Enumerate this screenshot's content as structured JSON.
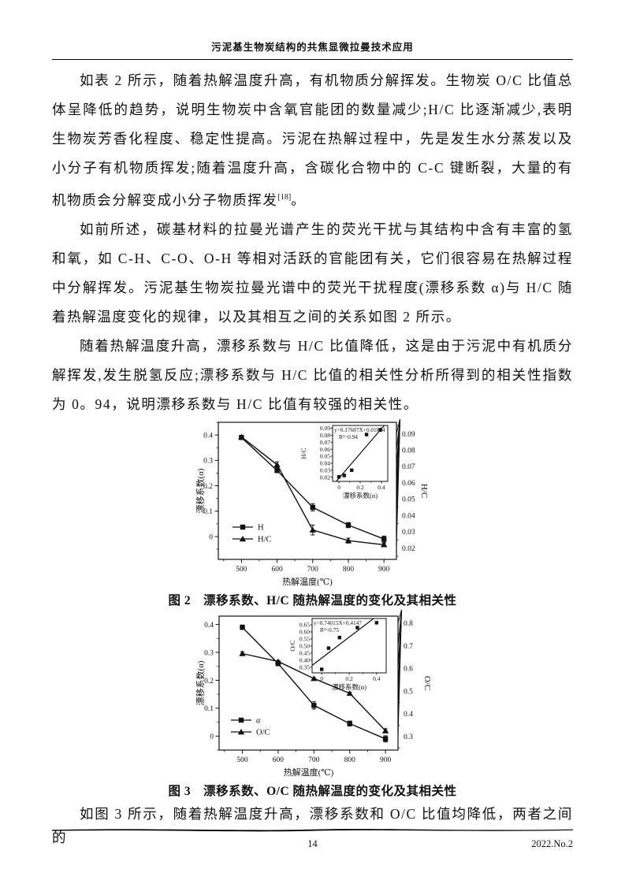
{
  "header": {
    "title": "污泥基生物炭结构的共焦显微拉曼技术应用"
  },
  "body": {
    "p1_text": "如表 2 所示，随着热解温度升高，有机物质分解挥发。生物炭 O/C 比值总体呈降低的趋势，说明生物炭中含氧官能团的数量减少;H/C 比逐渐减少,表明生物炭芳香化程度、稳定性提高。污泥在热解过程中，先是发生水分蒸发以及小分子有机物质挥发;随着温度升高，含碳化合物中的 C-C 键断裂，大量的有机物质会分解变成小分子物质挥发",
    "p1_sup": "[18]",
    "p1_tail": "。",
    "p2": "如前所述，碳基材料的拉曼光谱产生的荧光干扰与其结构中含有丰富的氢和氧，如 C-H、C-O、O-H 等相对活跃的官能团有关，它们很容易在热解过程中分解挥发。污泥基生物炭拉曼光谱中的荧光干扰程度(漂移系数 α)与 H/C 随着热解温度变化的规律，以及其相互之间的关系如图 2 所示。",
    "p3": "随着热解温度升高，漂移系数与 H/C 比值降低，这是由于污泥中有机质分解挥发,发生脱氢反应;漂移系数与 H/C 比值的相关性分析所得到的相关性指数为 0。94，说明漂移系数与 H/C 比值有较强的相关性。",
    "p4": "如图 3 所示，随着热解温度升高，漂移系数和 O/C 比值均降低，两者之间的"
  },
  "figures": {
    "fig2": {
      "caption": "图 2　漂移系数、H/C 随热解温度的变化及其相关性",
      "chart_data": {
        "type": "line",
        "x": [
          500,
          600,
          700,
          800,
          900
        ],
        "x_tick_labels": [
          "500",
          "600",
          "700",
          "800",
          "900"
        ],
        "xlim": [
          435,
          935
        ],
        "xlabel": "热解温度(℃)",
        "left_axis": {
          "label": "漂移系数(α)",
          "lim": [
            -0.09,
            0.45
          ],
          "ticks": [
            0,
            0.1,
            0.2,
            0.3,
            0.4
          ],
          "tick_labels": [
            "0",
            "0.1",
            "0.2",
            "0.3",
            "0.4"
          ]
        },
        "right_axis": {
          "label": "H/C",
          "lim": [
            0.013,
            0.097
          ],
          "ticks": [
            0.02,
            0.03,
            0.04,
            0.05,
            0.06,
            0.07,
            0.08,
            0.09
          ],
          "tick_labels": [
            "0.02",
            "0.03",
            "0.04",
            "0.05",
            "0.06",
            "0.07",
            "0.08",
            "0.09"
          ]
        },
        "series": [
          {
            "name": "H",
            "marker": "square",
            "axis": "left",
            "italic": false,
            "values": [
              0.39,
              0.26,
              0.115,
              0.045,
              -0.01
            ],
            "errors": [
              0.008,
              0.008,
              0.014,
              0.01,
              0.012
            ]
          },
          {
            "name": "H/C",
            "marker": "triangle",
            "axis": "right",
            "italic": false,
            "values": [
              0.088,
              0.071,
              0.031,
              0.0245,
              0.022
            ],
            "errors": [
              0.001,
              0.0018,
              0.003,
              0.0015,
              0.001
            ]
          }
        ],
        "legend_position": "lower-left",
        "inset": {
          "equation": "y=0.17687X+0.01854",
          "r_squared": "R²=0.94",
          "xlabel": "漂移系数(α)",
          "ylabel": "H/C",
          "xlim": [
            -0.06,
            0.46
          ],
          "x_ticks": [
            0,
            0.2,
            0.4
          ],
          "x_tick_labels": [
            "0",
            "0.2",
            "0.4"
          ],
          "ylim": [
            0.014,
            0.094
          ],
          "y_ticks": [
            0.02,
            0.03,
            0.04,
            0.05,
            0.06,
            0.07,
            0.08,
            0.09
          ],
          "y_tick_labels": [
            "0.02",
            "0.03",
            "0.04",
            "0.05",
            "0.06",
            "0.07",
            "0.08",
            "0.09"
          ],
          "points": [
            [
              0,
              0.0205
            ],
            [
              0.05,
              0.0225
            ],
            [
              0.12,
              0.03
            ],
            [
              0.26,
              0.081
            ],
            [
              0.39,
              0.0875
            ]
          ],
          "fit": {
            "slope": 0.17687,
            "intercept": 0.01854
          }
        }
      }
    },
    "fig3": {
      "caption": "图 3　漂移系数、O/C 随热解温度的变化及其相关性",
      "chart_data": {
        "type": "line",
        "x": [
          500,
          600,
          700,
          800,
          900
        ],
        "x_tick_labels": [
          "500",
          "600",
          "700",
          "800",
          "900"
        ],
        "xlim": [
          435,
          935
        ],
        "xlabel": "热解温度(℃)",
        "left_axis": {
          "label": "漂移系数(α)",
          "lim": [
            -0.05,
            0.43
          ],
          "ticks": [
            0,
            0.1,
            0.2,
            0.3,
            0.4
          ],
          "tick_labels": [
            "0",
            "0.1",
            "0.2",
            "0.3",
            "0.4"
          ]
        },
        "right_axis": {
          "label": "O/C",
          "lim": [
            0.24,
            0.83
          ],
          "ticks": [
            0.3,
            0.4,
            0.5,
            0.6,
            0.7,
            0.8
          ],
          "tick_labels": [
            "0.3",
            "0.4",
            "0.5",
            "0.6",
            "0.7",
            "0.8"
          ]
        },
        "series": [
          {
            "name": "α",
            "marker": "square",
            "axis": "left",
            "italic": true,
            "values": [
              0.39,
              0.26,
              0.11,
              0.045,
              -0.01
            ],
            "errors": [
              0.008,
              0.008,
              0.013,
              0.009,
              0.011
            ]
          },
          {
            "name": "O/C",
            "marker": "triangle",
            "axis": "right",
            "italic": false,
            "values": [
              0.665,
              0.63,
              0.555,
              0.49,
              0.325
            ],
            "errors": [
              0.008,
              0.004,
              0.004,
              0.005,
              0.009
            ]
          }
        ],
        "legend_position": "lower-left",
        "inset": {
          "equation": "y=0.74015X+0.4147",
          "r_squared": "R²=0.75",
          "xlabel": "漂移系数(α)",
          "ylabel": "O/C",
          "xlim": [
            -0.07,
            0.47
          ],
          "x_ticks": [
            0,
            0.2,
            0.4
          ],
          "x_tick_labels": [
            "0",
            "0.2",
            "0.4"
          ],
          "ylim": [
            0.31,
            0.695
          ],
          "y_ticks": [
            0.35,
            0.4,
            0.45,
            0.5,
            0.55,
            0.6,
            0.65
          ],
          "y_tick_labels": [
            "0.35",
            "0.40",
            "0.45",
            "0.50",
            "0.55",
            "0.60",
            "0.65"
          ],
          "points": [
            [
              0,
              0.335
            ],
            [
              0.05,
              0.485
            ],
            [
              0.13,
              0.56
            ],
            [
              0.26,
              0.63
            ],
            [
              0.4,
              0.665
            ]
          ],
          "fit": {
            "slope": 0.74015,
            "intercept": 0.4147
          }
        }
      }
    }
  },
  "footer": {
    "page_number": "14",
    "issue": "2022.No.2"
  },
  "colors": {
    "ink": "#111111",
    "paper": "#ffffff"
  }
}
